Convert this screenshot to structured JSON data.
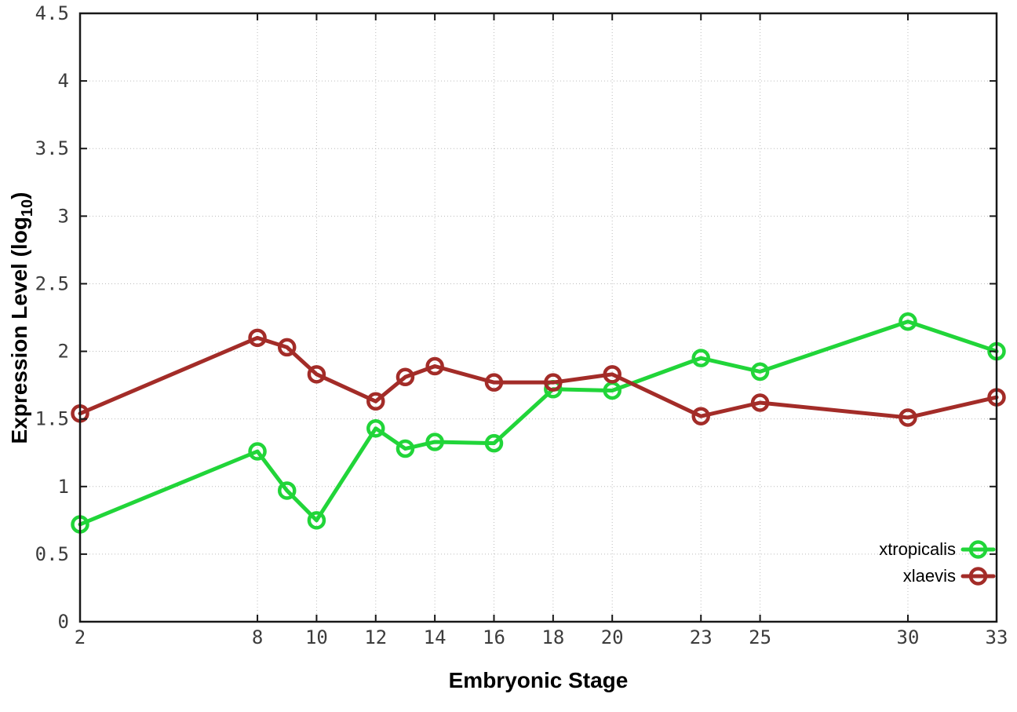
{
  "chart_data": {
    "type": "line",
    "title": "",
    "xlabel": "Embryonic Stage",
    "ylabel": {
      "prefix": "Expression Level (log",
      "sub": "10",
      "suffix": ")"
    },
    "xlim": [
      2,
      33
    ],
    "ylim": [
      0,
      4.5
    ],
    "grid": true,
    "legend_position": "bottom-right-inside",
    "xtick_values": [
      2,
      8,
      10,
      12,
      14,
      16,
      18,
      20,
      23,
      25,
      30,
      33
    ],
    "xtick_labels": [
      "2",
      "8",
      "10",
      "12",
      "14",
      "16",
      "18",
      "20",
      "23",
      "25",
      "30",
      "33"
    ],
    "ytick_values": [
      0,
      0.5,
      1,
      1.5,
      2,
      2.5,
      3,
      3.5,
      4,
      4.5
    ],
    "ytick_labels": [
      "0",
      "0.5",
      "1",
      "1.5",
      "2",
      "2.5",
      "3",
      "3.5",
      "4",
      "4.5"
    ],
    "x": [
      2,
      8,
      9,
      10,
      12,
      13,
      14,
      16,
      18,
      20,
      23,
      25,
      30,
      33
    ],
    "series": [
      {
        "name": "xtropicalis",
        "color": "#21d539",
        "values": [
          0.72,
          1.26,
          0.97,
          0.75,
          1.43,
          1.28,
          1.33,
          1.32,
          1.72,
          1.71,
          1.95,
          1.85,
          2.22,
          2.0
        ]
      },
      {
        "name": "xlaevis",
        "color": "#a32c28",
        "values": [
          1.54,
          2.1,
          2.03,
          1.83,
          1.63,
          1.81,
          1.89,
          1.77,
          1.77,
          1.83,
          1.52,
          1.62,
          1.51,
          1.66
        ]
      }
    ],
    "colors": {
      "grid": "#bcbcbc",
      "border": "#181818",
      "tick_text": "#3c3c3c"
    }
  }
}
